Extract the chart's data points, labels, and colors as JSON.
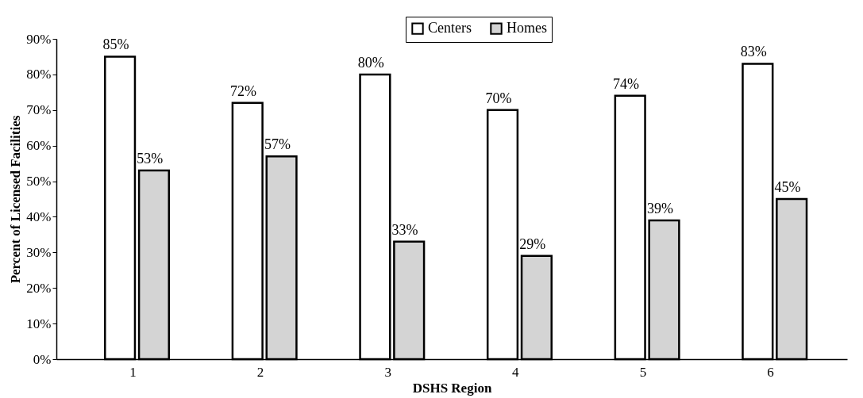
{
  "chart_data": {
    "type": "bar",
    "xlabel": "DSHS Region",
    "ylabel": "Percent of Licensed Facilities",
    "categories": [
      "1",
      "2",
      "3",
      "4",
      "5",
      "6"
    ],
    "series": [
      {
        "name": "Centers",
        "color": "#ffffff",
        "values": [
          85,
          72,
          80,
          70,
          74,
          83
        ],
        "value_labels": [
          "85%",
          "72%",
          "80%",
          "70%",
          "74%",
          "83%"
        ]
      },
      {
        "name": "Homes",
        "color": "#d4d4d4",
        "values": [
          53,
          57,
          33,
          29,
          39,
          45
        ],
        "value_labels": [
          "53%",
          "57%",
          "33%",
          "29%",
          "39%",
          "45%"
        ]
      }
    ],
    "ylim": [
      0,
      90
    ],
    "yticks": [
      {
        "value": 0,
        "label": "0%"
      },
      {
        "value": 10,
        "label": "10%"
      },
      {
        "value": 20,
        "label": "20%"
      },
      {
        "value": 30,
        "label": "30%"
      },
      {
        "value": 40,
        "label": "40%"
      },
      {
        "value": 50,
        "label": "50%"
      },
      {
        "value": 60,
        "label": "60%"
      },
      {
        "value": 70,
        "label": "70%"
      },
      {
        "value": 80,
        "label": "80%"
      },
      {
        "value": 90,
        "label": "90%"
      }
    ],
    "grid": false,
    "legend": "top"
  }
}
